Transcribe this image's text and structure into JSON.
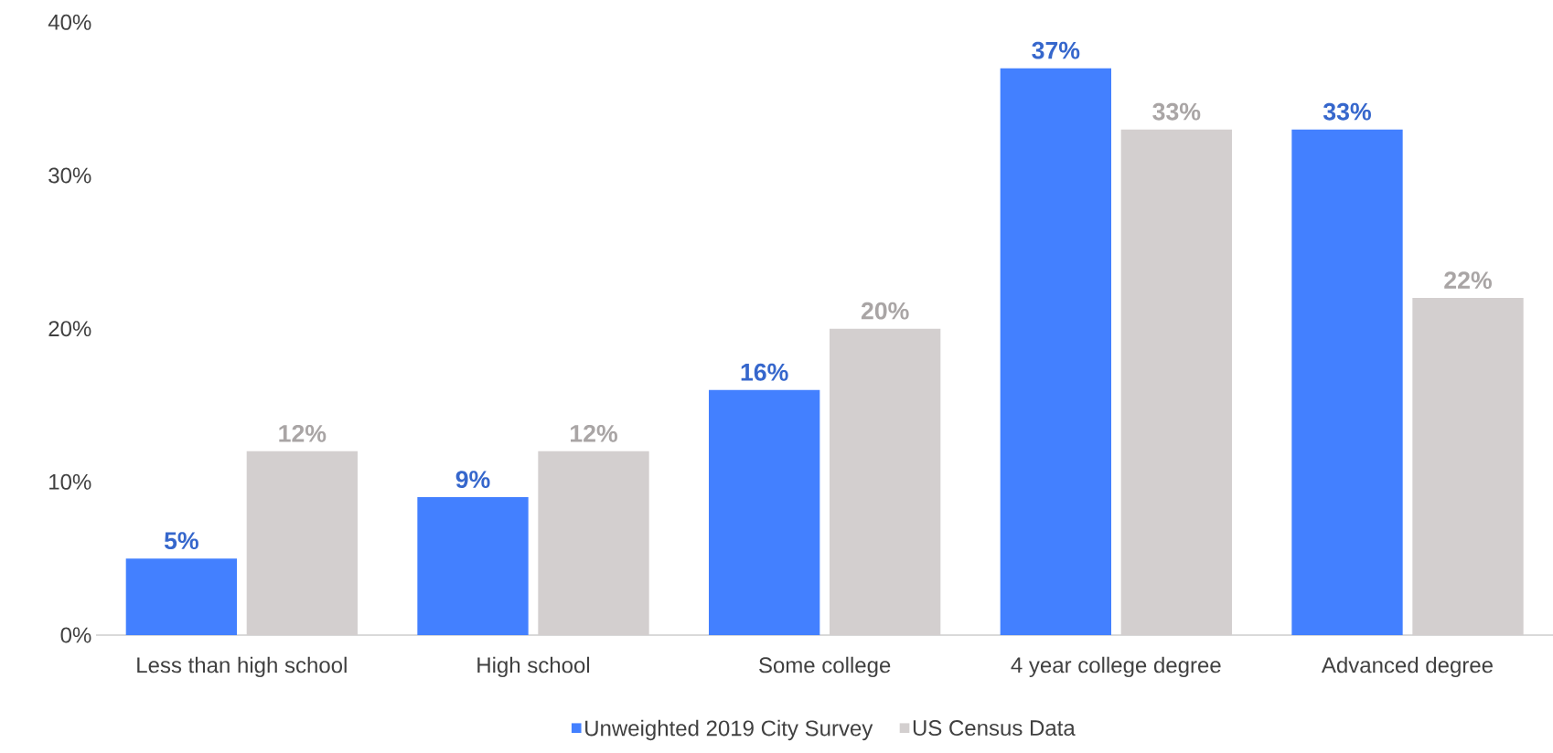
{
  "chart_data": {
    "type": "bar",
    "categories": [
      "Less than high school",
      "High school",
      "Some college",
      "4 year college degree",
      "Advanced degree"
    ],
    "series": [
      {
        "name": "Unweighted 2019 City Survey",
        "color": "#4380ff",
        "values": [
          5,
          9,
          16,
          37,
          33
        ],
        "value_labels": [
          "5%",
          "9%",
          "16%",
          "37%",
          "33%"
        ]
      },
      {
        "name": "US Census Data",
        "color": "#d3cfcf",
        "values": [
          12,
          12,
          20,
          33,
          22
        ],
        "value_labels": [
          "12%",
          "12%",
          "20%",
          "33%",
          "22%"
        ]
      }
    ],
    "ylim": [
      0,
      40
    ],
    "yticks": [
      {
        "value": 0,
        "label": "0%"
      },
      {
        "value": 10,
        "label": "10%"
      },
      {
        "value": 20,
        "label": "20%"
      },
      {
        "value": 30,
        "label": "30%"
      },
      {
        "value": 40,
        "label": "40%"
      }
    ],
    "grid": false,
    "legend": "bottom"
  }
}
